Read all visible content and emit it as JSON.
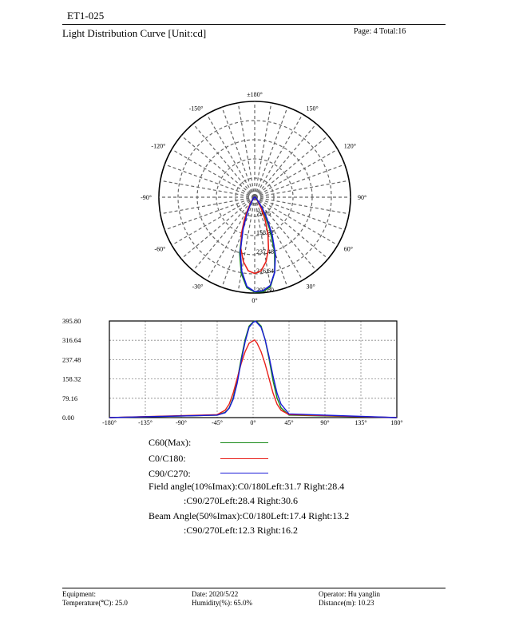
{
  "doc_id": "ET1-025",
  "title": "Light Distribution Curve [Unit:cd]",
  "page_info": "Page: 4  Total:16",
  "legend": [
    {
      "label": "C60(Max):",
      "color": "#1a8a1a"
    },
    {
      "label": "C0/C180:",
      "color": "#e8201a"
    },
    {
      "label": "C90/C270:",
      "color": "#1a1ad8"
    }
  ],
  "angles": {
    "field_c0": "Field angle(10%Imax):C0/180Left:31.7 Right:28.4",
    "field_c90": ":C90/270Left:28.4 Right:30.6",
    "beam_c0": "Beam Angle(50%Imax):C0/180Left:17.4 Right:13.2",
    "beam_c90": ":C90/270Left:12.3 Right:16.2"
  },
  "footer": {
    "equipment": "Equipment:",
    "temperature": "Temperature(℃): 25.0",
    "date": "Date: 2020/5/22",
    "humidity": "Humidity(%): 65.0%",
    "operator": "Operator: Hu yanglin",
    "distance": "Distance(m): 10.23"
  },
  "chart_data": [
    {
      "type": "polar",
      "angle_labels": [
        "±180°",
        "150°",
        "120°",
        "90°",
        "60°",
        "30°",
        "0°",
        "-30°",
        "-60°",
        "-90°",
        "-120°",
        "-150°"
      ],
      "radial_labels": [
        "79.16",
        "158.32",
        "237.48",
        "316.64",
        "395.80"
      ],
      "rmax": 395.8,
      "series": [
        {
          "name": "C60(Max):",
          "color": "#1a8a1a",
          "angles": [
            -80,
            -60,
            -45,
            -35,
            -30,
            -25,
            -20,
            -15,
            -10,
            -5,
            0,
            5,
            10,
            15,
            20,
            25,
            30,
            35,
            45,
            60,
            80
          ],
          "values": [
            2,
            5,
            10,
            22,
            40,
            80,
            150,
            240,
            320,
            375,
            392,
            392,
            375,
            320,
            240,
            150,
            80,
            40,
            10,
            5,
            2
          ]
        },
        {
          "name": "C0/C180:",
          "color": "#e8201a",
          "angles": [
            -80,
            -60,
            -45,
            -35,
            -30,
            -25,
            -20,
            -15,
            -10,
            -5,
            0,
            5,
            10,
            15,
            20,
            25,
            30,
            35,
            45,
            60,
            80
          ],
          "values": [
            2,
            5,
            12,
            30,
            55,
            100,
            160,
            220,
            270,
            305,
            315,
            305,
            270,
            220,
            160,
            100,
            55,
            30,
            12,
            5,
            2
          ]
        },
        {
          "name": "C90/C270:",
          "color": "#1a1ad8",
          "angles": [
            -80,
            -60,
            -45,
            -35,
            -30,
            -25,
            -20,
            -15,
            -10,
            -5,
            0,
            5,
            10,
            15,
            20,
            25,
            30,
            35,
            45,
            60,
            80
          ],
          "values": [
            2,
            5,
            10,
            20,
            38,
            75,
            140,
            230,
            310,
            370,
            390,
            388,
            370,
            320,
            250,
            170,
            100,
            55,
            15,
            5,
            2
          ]
        }
      ]
    },
    {
      "type": "line",
      "x_ticks": [
        "-180°",
        "-135°",
        "-90°",
        "-45°",
        "0°",
        "45°",
        "90°",
        "135°",
        "180°"
      ],
      "y_ticks": [
        "395.80",
        "316.64",
        "237.48",
        "158.32",
        "79.16",
        "0.00"
      ],
      "xlim": [
        -180,
        180
      ],
      "ylim": [
        0,
        395.8
      ],
      "series": [
        {
          "name": "C60(Max):",
          "color": "#1a8a1a",
          "x": [
            -180,
            -45,
            -35,
            -30,
            -25,
            -20,
            -15,
            -10,
            -5,
            0,
            2,
            5,
            10,
            15,
            20,
            25,
            30,
            35,
            45,
            180
          ],
          "y": [
            0,
            10,
            22,
            40,
            80,
            150,
            240,
            320,
            375,
            392,
            395,
            392,
            375,
            320,
            240,
            150,
            80,
            40,
            10,
            0
          ]
        },
        {
          "name": "C0/C180:",
          "color": "#e8201a",
          "x": [
            -180,
            -45,
            -35,
            -30,
            -25,
            -20,
            -15,
            -10,
            -5,
            0,
            2,
            5,
            10,
            15,
            20,
            25,
            30,
            35,
            45,
            180
          ],
          "y": [
            0,
            12,
            30,
            55,
            100,
            160,
            220,
            270,
            305,
            315,
            318,
            305,
            270,
            220,
            160,
            100,
            55,
            30,
            12,
            0
          ]
        },
        {
          "name": "C90/C270:",
          "color": "#1a1ad8",
          "x": [
            -180,
            -45,
            -35,
            -30,
            -25,
            -20,
            -15,
            -10,
            -5,
            0,
            3,
            5,
            10,
            15,
            20,
            25,
            30,
            35,
            45,
            180
          ],
          "y": [
            0,
            10,
            20,
            38,
            75,
            140,
            230,
            310,
            370,
            390,
            395,
            388,
            370,
            320,
            250,
            170,
            100,
            55,
            15,
            0
          ]
        }
      ]
    }
  ]
}
